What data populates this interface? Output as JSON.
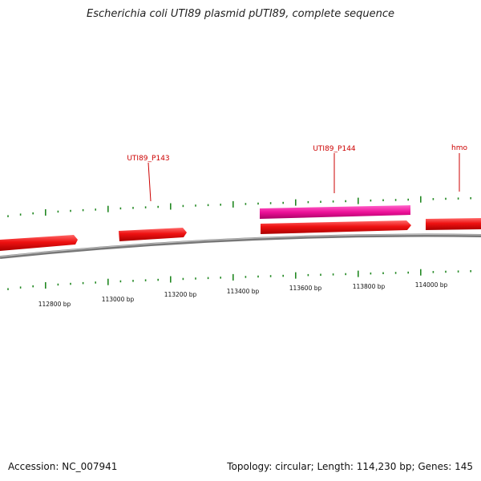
{
  "header": {
    "title": "Escherichia coli UTI89 plasmid pUTI89, complete sequence"
  },
  "footer": {
    "accession": "Accession: NC_007941",
    "summary": "Topology: circular; Length: 114,230 bp; Genes: 145"
  },
  "map": {
    "colors": {
      "backbone": "#888888",
      "gene_forward": "#ee1111",
      "gene_highlight": "#ee1199",
      "tick": "#228822",
      "label": "#cc0000"
    },
    "ruler_labels": [
      {
        "bp": 112800,
        "text": "112800 bp"
      },
      {
        "bp": 113000,
        "text": "113000 bp"
      },
      {
        "bp": 113200,
        "text": "113200 bp"
      },
      {
        "bp": 113400,
        "text": "113400 bp"
      },
      {
        "bp": 113600,
        "text": "113600 bp"
      },
      {
        "bp": 113800,
        "text": "113800 bp"
      },
      {
        "bp": 114000,
        "text": "114000 bp"
      }
    ],
    "gene_labels": [
      {
        "text": "UTI89_P143"
      },
      {
        "text": "UTI89_P144"
      },
      {
        "text": "hmo"
      }
    ]
  }
}
